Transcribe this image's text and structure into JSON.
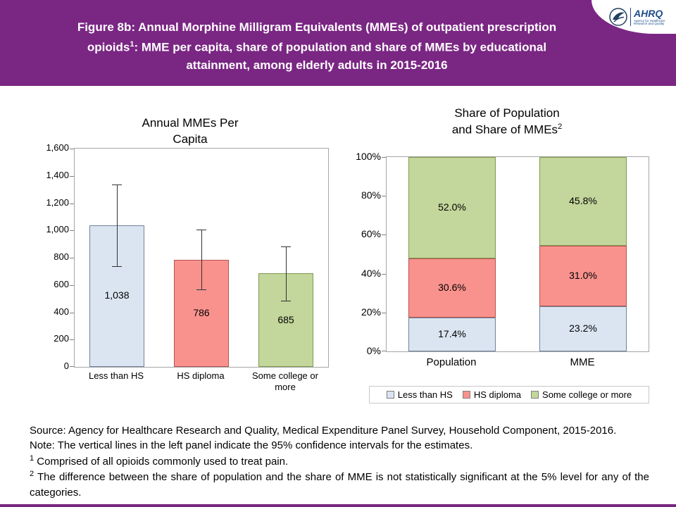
{
  "colors": {
    "header_purple": "#7A2683",
    "frame_gray": "#A6A6A6",
    "error_bar": "#333333"
  },
  "header": {
    "title_part1": "Figure 8b: Annual Morphine Milligram Equivalents (MMEs) of outpatient prescription opioids",
    "title_sup": "1",
    "title_part2": ": MME per capita, share of population and share of MMEs by educational attainment, among elderly adults in 2015-2016",
    "logo": {
      "org_acronym": "AHRQ",
      "org_tagline": "Agency for Healthcare Research and Quality"
    }
  },
  "chart_data": [
    {
      "type": "bar",
      "title": "Annual MMEs Per Capita",
      "title_lines": [
        "Annual MMEs Per",
        "Capita"
      ],
      "categories": [
        "Less than HS",
        "HS diploma",
        "Some college or more"
      ],
      "values": [
        1038,
        786,
        685
      ],
      "value_labels": [
        "1,038",
        "786",
        "685"
      ],
      "ci_low": [
        735,
        565,
        480
      ],
      "ci_high": [
        1335,
        1005,
        885
      ],
      "ylim": [
        0,
        1600
      ],
      "ytick_step": 200,
      "ytick_labels": [
        "0",
        "200",
        "400",
        "600",
        "800",
        "1,000",
        "1,200",
        "1,400",
        "1,600"
      ],
      "bar_fill": [
        "#DBE5F1",
        "#F9928D",
        "#C3D69B"
      ],
      "bar_border": [
        "#70839B",
        "#B45450",
        "#7E9B50"
      ],
      "grid": "off",
      "legend": "none"
    },
    {
      "type": "stacked-bar",
      "title": "Share of Population and Share of MMEs",
      "title_lines": [
        "Share of Population",
        "and Share of MMEs"
      ],
      "title_sup": "2",
      "categories": [
        "Population",
        "MME"
      ],
      "series": [
        {
          "name": "Less than HS",
          "values": [
            17.4,
            23.2
          ],
          "labels": [
            "17.4%",
            "23.2%"
          ],
          "fill": "#DBE5F1",
          "border": "#70839B"
        },
        {
          "name": "HS diploma",
          "values": [
            30.6,
            31.0
          ],
          "labels": [
            "30.6%",
            "31.0%"
          ],
          "fill": "#F9928D",
          "border": "#B45450"
        },
        {
          "name": "Some college or more",
          "values": [
            52.0,
            45.8
          ],
          "labels": [
            "52.0%",
            "45.8%"
          ],
          "fill": "#C3D69B",
          "border": "#7E9B50"
        }
      ],
      "ylim": [
        0,
        100
      ],
      "ytick_step": 20,
      "ytick_labels": [
        "0%",
        "20%",
        "40%",
        "60%",
        "80%",
        "100%"
      ],
      "grid": "off",
      "legend_position": "bottom"
    }
  ],
  "footer": {
    "line1": "Source: Agency for Healthcare Research and Quality, Medical Expenditure Panel Survey, Household Component, 2015-2016.",
    "line2": "Note: The vertical lines in the left panel indicate the 95% confidence intervals for the estimates.",
    "fn1_sup": "1",
    "fn1_text": " Comprised of all opioids commonly used to treat pain.",
    "fn2_sup": "2",
    "fn2_text": " The difference between the share of population and the share of MME is not statistically significant at the 5% level for any of the categories."
  }
}
